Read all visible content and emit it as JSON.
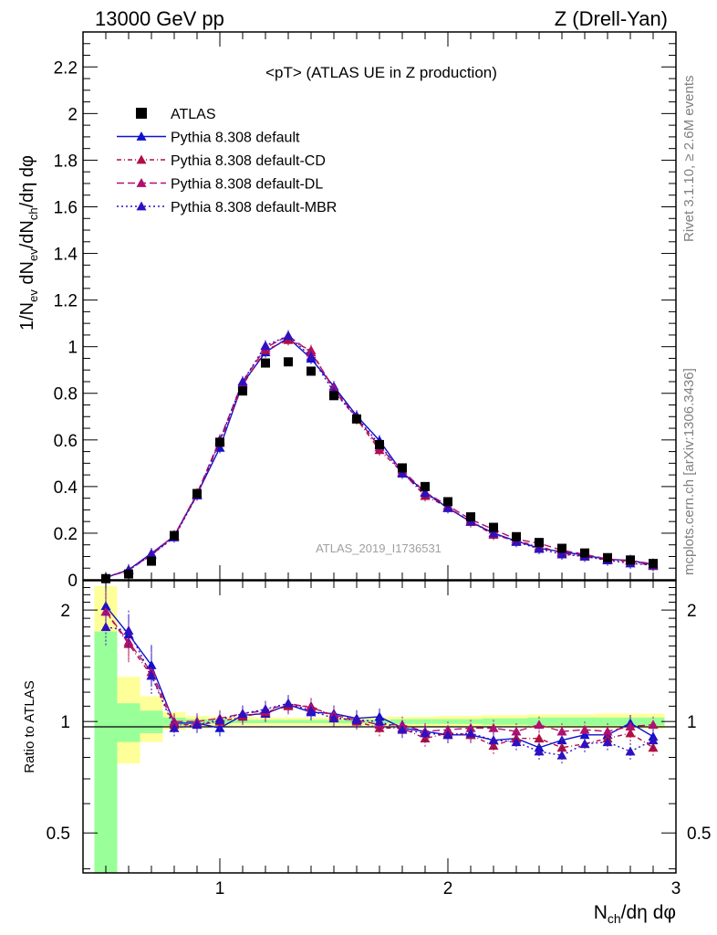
{
  "header": {
    "energy_label": "13000 GeV pp",
    "process_label": "Z (Drell-Yan)"
  },
  "side_labels": {
    "rivet": "Rivet 3.1.10, ≥ 2.6M events",
    "mcplots": "mcplots.cern.ch [arXiv:1306.3436]"
  },
  "chart_data": {
    "type": "scatter",
    "title": "<pT> (ATLAS UE in Z production)",
    "analysis_id": "ATLAS_2019_I1736531",
    "xlabel": "N_ch/dη dφ",
    "ylabel": "1/N_ev dN_ev/dN_ch/dη dφ",
    "ratio_ylabel": "Ratio to ATLAS",
    "xlim": [
      0.4,
      3.0
    ],
    "ylim": [
      0,
      2.35
    ],
    "ratio_ylim": [
      0.39,
      2.4
    ],
    "ratio_scale": "log",
    "legend_position": "top-left",
    "x_ticks": [
      "1",
      "2",
      "3"
    ],
    "y_ticks": [
      "0",
      "0.2",
      "0.4",
      "0.6",
      "0.8",
      "1",
      "1.2",
      "1.4",
      "1.6",
      "1.8",
      "2",
      "2.2"
    ],
    "ratio_ticks": [
      "0.5",
      "1",
      "2"
    ],
    "x": [
      0.5,
      0.6,
      0.7,
      0.8,
      0.9,
      1.0,
      1.1,
      1.2,
      1.3,
      1.4,
      1.5,
      1.6,
      1.7,
      1.8,
      1.9,
      2.0,
      2.1,
      2.2,
      2.3,
      2.4,
      2.5,
      2.6,
      2.7,
      2.8,
      2.9
    ],
    "reference": {
      "name": "ATLAS",
      "values": [
        0.005,
        0.025,
        0.08,
        0.19,
        0.37,
        0.59,
        0.81,
        0.93,
        0.935,
        0.895,
        0.79,
        0.69,
        0.58,
        0.48,
        0.4,
        0.335,
        0.27,
        0.225,
        0.185,
        0.16,
        0.135,
        0.115,
        0.095,
        0.085,
        0.07
      ]
    },
    "series": [
      {
        "name": "Pythia 8.308 default",
        "color": "#1010d0",
        "dash": "",
        "ratio": [
          2.05,
          1.72,
          1.42,
          0.99,
          0.99,
          0.96,
          1.04,
          1.05,
          1.11,
          1.06,
          1.05,
          1.02,
          1.03,
          0.96,
          0.94,
          0.92,
          0.92,
          0.89,
          0.9,
          0.85,
          0.89,
          0.92,
          0.92,
          0.99,
          0.91
        ]
      },
      {
        "name": "Pythia 8.308 default-CD",
        "color": "#b01040",
        "dash": "5,3,1,3",
        "ratio": [
          1.98,
          1.62,
          1.33,
          0.98,
          0.98,
          1.0,
          1.03,
          1.06,
          1.1,
          1.1,
          1.03,
          1.0,
          0.96,
          0.96,
          0.9,
          0.93,
          0.92,
          0.86,
          0.9,
          0.9,
          0.85,
          0.87,
          0.9,
          0.93,
          0.85
        ]
      },
      {
        "name": "Pythia 8.308 default-DL",
        "color": "#b01070",
        "dash": "8,4",
        "ratio": [
          1.98,
          1.64,
          1.36,
          1.0,
          1.0,
          1.02,
          1.05,
          1.07,
          1.12,
          1.09,
          1.04,
          1.01,
          0.98,
          0.98,
          0.94,
          0.95,
          0.96,
          0.96,
          0.94,
          0.98,
          0.94,
          0.95,
          0.94,
          0.97,
          0.98
        ]
      },
      {
        "name": "Pythia 8.308 default-MBR",
        "color": "#3010c0",
        "dash": "2,3",
        "ratio": [
          1.8,
          1.76,
          1.33,
          0.96,
          0.98,
          1.01,
          1.05,
          1.08,
          1.12,
          1.07,
          1.02,
          1.01,
          1.0,
          0.95,
          0.93,
          0.92,
          0.93,
          0.89,
          0.88,
          0.83,
          0.81,
          0.87,
          0.88,
          0.83,
          0.89
        ]
      }
    ],
    "uncertainty_bands": {
      "x_edges": [
        0.45,
        0.55,
        0.65,
        0.75,
        0.85,
        0.95,
        1.05,
        1.15,
        1.25,
        1.35,
        1.45,
        1.55,
        1.65,
        1.75,
        1.85,
        1.95,
        2.05,
        2.15,
        2.25,
        2.35,
        2.45,
        2.55,
        2.65,
        2.75,
        2.85,
        2.95
      ],
      "stat_lo": [
        0.36,
        0.88,
        0.93,
        0.975,
        0.985,
        0.985,
        0.99,
        0.99,
        0.99,
        0.99,
        0.99,
        0.99,
        0.99,
        0.985,
        0.985,
        0.985,
        0.985,
        0.98,
        0.98,
        0.975,
        0.975,
        0.975,
        0.975,
        0.975,
        0.975
      ],
      "stat_hi": [
        1.75,
        1.12,
        1.07,
        1.025,
        1.015,
        1.015,
        1.01,
        1.01,
        1.01,
        1.01,
        1.01,
        1.01,
        1.01,
        1.015,
        1.015,
        1.015,
        1.015,
        1.02,
        1.02,
        1.025,
        1.025,
        1.025,
        1.025,
        1.025,
        1.025
      ],
      "syst_lo": [
        0.36,
        0.77,
        0.88,
        0.95,
        0.965,
        0.97,
        0.975,
        0.975,
        0.975,
        0.975,
        0.975,
        0.975,
        0.975,
        0.97,
        0.97,
        0.97,
        0.97,
        0.965,
        0.965,
        0.96,
        0.96,
        0.96,
        0.96,
        0.955,
        0.955
      ],
      "syst_hi": [
        2.32,
        1.32,
        1.17,
        1.06,
        1.035,
        1.03,
        1.03,
        1.025,
        1.025,
        1.025,
        1.025,
        1.025,
        1.03,
        1.03,
        1.03,
        1.035,
        1.035,
        1.04,
        1.04,
        1.045,
        1.045,
        1.045,
        1.05,
        1.05,
        1.05
      ],
      "stat_color": "#99ff99",
      "syst_color": "#ffff99"
    },
    "grid": false
  }
}
